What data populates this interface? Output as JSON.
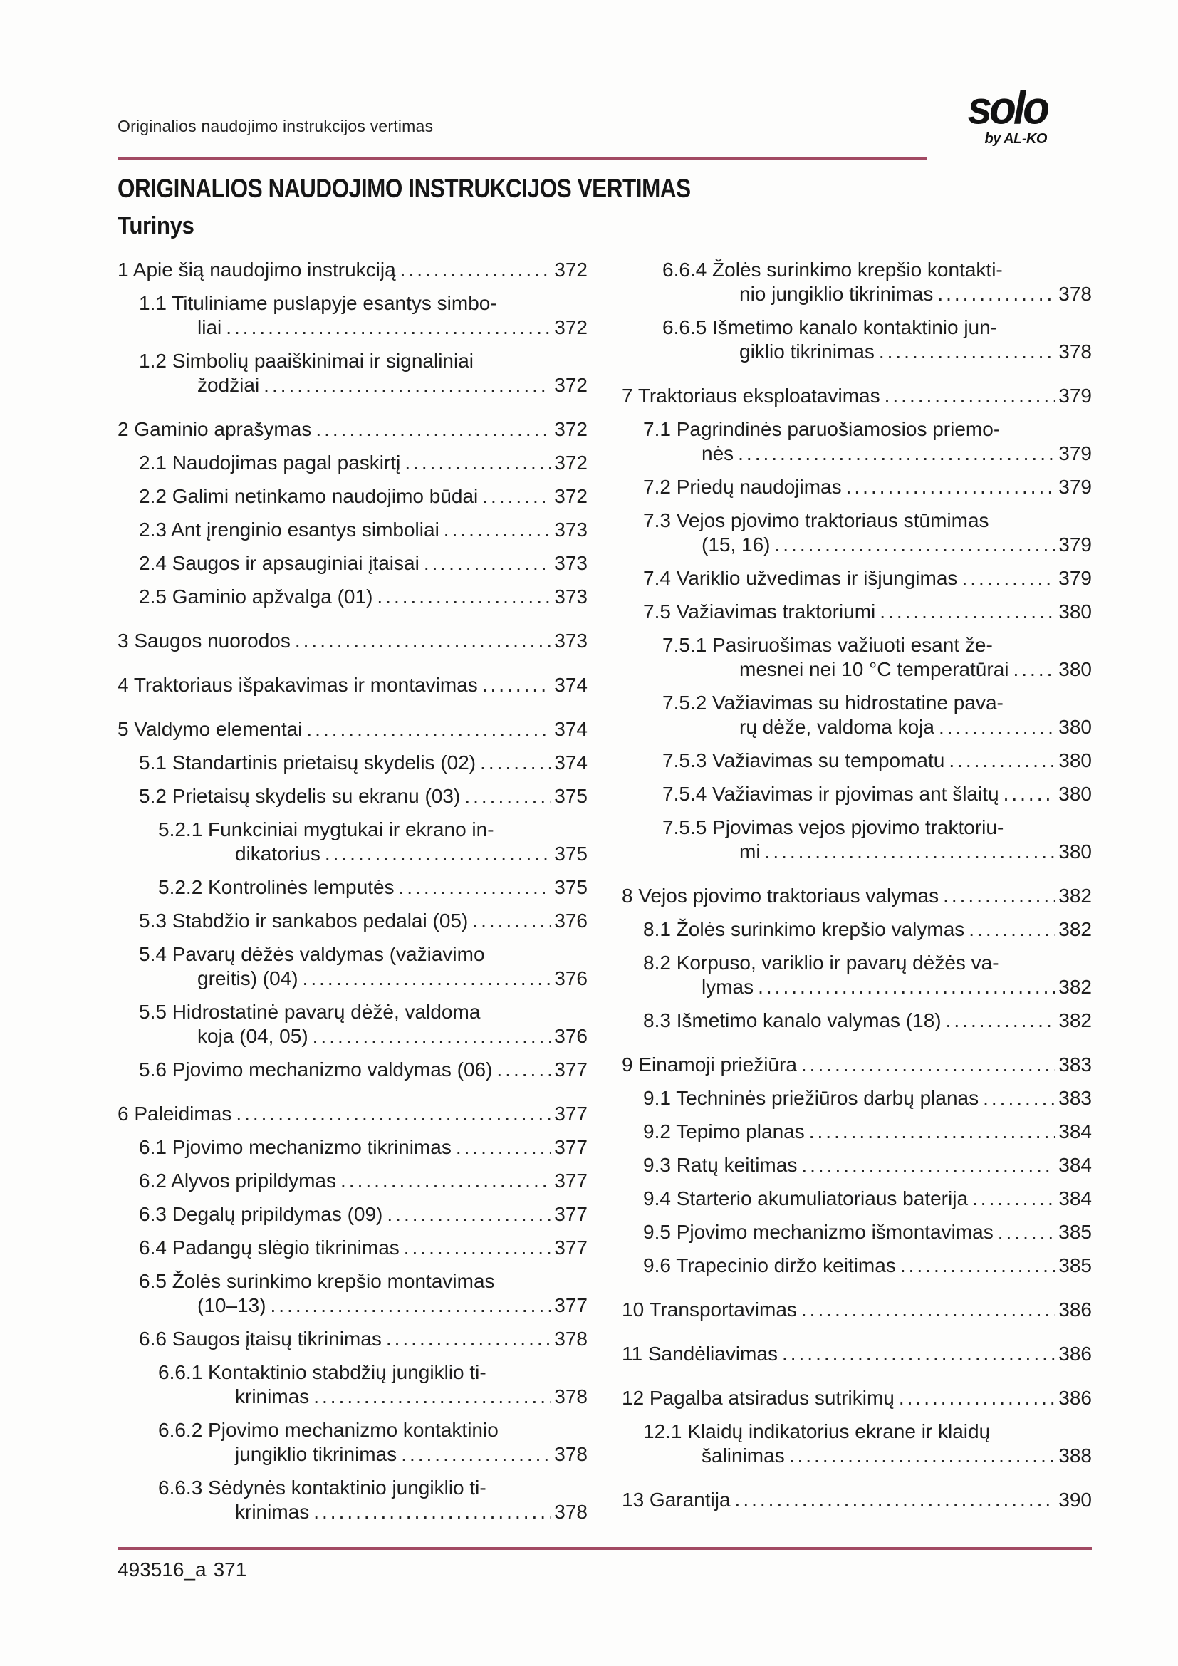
{
  "header": {
    "running_title": "Originalios naudojimo instrukcijos vertimas",
    "logo_text": "solo",
    "logo_subtext": "by AL-KO"
  },
  "title": "ORIGINALIOS NAUDOJIMO INSTRUKCIJOS VERTIMAS",
  "subtitle": "Turinys",
  "footer": {
    "doc_code": "493516_a",
    "page_number": "371"
  },
  "colors": {
    "rule": "#a24a63",
    "text": "#1d1d1d"
  },
  "toc": {
    "left_column": [
      {
        "level": 1,
        "label_lines": [
          "1 Apie šią naudojimo instrukciją"
        ],
        "page": "372"
      },
      {
        "level": 2,
        "label_lines": [
          "1.1 Tituliniame puslapyje esantys simbo-",
          "liai"
        ],
        "page": "372"
      },
      {
        "level": 2,
        "label_lines": [
          "1.2 Simbolių paaiškinimai ir signaliniai",
          "žodžiai"
        ],
        "page": "372"
      },
      {
        "level": 1,
        "label_lines": [
          "2 Gaminio aprašymas"
        ],
        "page": "372"
      },
      {
        "level": 2,
        "label_lines": [
          "2.1 Naudojimas pagal paskirtį"
        ],
        "page": "372"
      },
      {
        "level": 2,
        "label_lines": [
          "2.2 Galimi netinkamo naudojimo būdai"
        ],
        "page": "372"
      },
      {
        "level": 2,
        "label_lines": [
          "2.3 Ant įrenginio esantys simboliai"
        ],
        "page": "373"
      },
      {
        "level": 2,
        "label_lines": [
          "2.4 Saugos ir apsauginiai įtaisai"
        ],
        "page": "373"
      },
      {
        "level": 2,
        "label_lines": [
          "2.5 Gaminio apžvalga (01)"
        ],
        "page": "373"
      },
      {
        "level": 1,
        "label_lines": [
          "3 Saugos nuorodos"
        ],
        "page": "373"
      },
      {
        "level": 1,
        "label_lines": [
          "4 Traktoriaus išpakavimas ir montavimas"
        ],
        "page": "374"
      },
      {
        "level": 1,
        "label_lines": [
          "5 Valdymo elementai"
        ],
        "page": "374"
      },
      {
        "level": 2,
        "label_lines": [
          "5.1 Standartinis prietaisų skydelis (02)"
        ],
        "page": "374"
      },
      {
        "level": 2,
        "label_lines": [
          "5.2 Prietaisų skydelis su ekranu (03)"
        ],
        "page": "375"
      },
      {
        "level": 3,
        "label_lines": [
          "5.2.1 Funkciniai mygtukai ir ekrano in-",
          "dikatorius"
        ],
        "page": "375"
      },
      {
        "level": 3,
        "label_lines": [
          "5.2.2 Kontrolinės lemputės"
        ],
        "page": "375"
      },
      {
        "level": 2,
        "label_lines": [
          "5.3 Stabdžio ir sankabos pedalai (05)"
        ],
        "page": "376"
      },
      {
        "level": 2,
        "label_lines": [
          "5.4 Pavarų dėžės valdymas (važiavimo",
          "greitis) (04)"
        ],
        "page": "376"
      },
      {
        "level": 2,
        "label_lines": [
          "5.5 Hidrostatinė pavarų dėžė, valdoma",
          "koja (04, 05)"
        ],
        "page": "376"
      },
      {
        "level": 2,
        "label_lines": [
          "5.6 Pjovimo mechanizmo valdymas (06)"
        ],
        "page": "377"
      },
      {
        "level": 1,
        "label_lines": [
          "6 Paleidimas"
        ],
        "page": "377"
      },
      {
        "level": 2,
        "label_lines": [
          "6.1 Pjovimo mechanizmo tikrinimas"
        ],
        "page": "377"
      },
      {
        "level": 2,
        "label_lines": [
          "6.2 Alyvos pripildymas"
        ],
        "page": "377"
      },
      {
        "level": 2,
        "label_lines": [
          "6.3 Degalų pripildymas (09)"
        ],
        "page": "377"
      },
      {
        "level": 2,
        "label_lines": [
          "6.4 Padangų slėgio tikrinimas"
        ],
        "page": "377"
      },
      {
        "level": 2,
        "label_lines": [
          "6.5 Žolės surinkimo krepšio montavimas",
          "(10–13)"
        ],
        "page": "377"
      },
      {
        "level": 2,
        "label_lines": [
          "6.6 Saugos įtaisų tikrinimas"
        ],
        "page": "378"
      },
      {
        "level": 3,
        "label_lines": [
          "6.6.1 Kontaktinio stabdžių jungiklio ti-",
          "krinimas"
        ],
        "page": "378"
      },
      {
        "level": 3,
        "label_lines": [
          "6.6.2 Pjovimo mechanizmo kontaktinio",
          "jungiklio tikrinimas"
        ],
        "page": "378"
      },
      {
        "level": 3,
        "label_lines": [
          "6.6.3 Sėdynės kontaktinio jungiklio ti-",
          "krinimas"
        ],
        "page": "378"
      }
    ],
    "right_column": [
      {
        "level": 3,
        "label_lines": [
          "6.6.4 Žolės surinkimo krepšio kontakti-",
          "nio jungiklio tikrinimas"
        ],
        "page": "378"
      },
      {
        "level": 3,
        "label_lines": [
          "6.6.5 Išmetimo kanalo kontaktinio jun-",
          "giklio tikrinimas"
        ],
        "page": "378"
      },
      {
        "level": 1,
        "label_lines": [
          "7 Traktoriaus eksploatavimas"
        ],
        "page": "379"
      },
      {
        "level": 2,
        "label_lines": [
          "7.1 Pagrindinės paruošiamosios priemo-",
          "nės"
        ],
        "page": "379"
      },
      {
        "level": 2,
        "label_lines": [
          "7.2 Priedų naudojimas"
        ],
        "page": "379"
      },
      {
        "level": 2,
        "label_lines": [
          "7.3 Vejos pjovimo traktoriaus stūmimas",
          "(15, 16)"
        ],
        "page": "379"
      },
      {
        "level": 2,
        "label_lines": [
          "7.4 Variklio užvedimas ir išjungimas"
        ],
        "page": "379"
      },
      {
        "level": 2,
        "label_lines": [
          "7.5 Važiavimas traktoriumi"
        ],
        "page": "380"
      },
      {
        "level": 3,
        "label_lines": [
          "7.5.1 Pasiruošimas važiuoti esant že-",
          "mesnei nei 10 °C temperatūrai"
        ],
        "page": "380"
      },
      {
        "level": 3,
        "label_lines": [
          "7.5.2 Važiavimas su hidrostatine pava-",
          "rų dėže, valdoma koja"
        ],
        "page": "380"
      },
      {
        "level": 3,
        "label_lines": [
          "7.5.3 Važiavimas su tempomatu"
        ],
        "page": "380"
      },
      {
        "level": 3,
        "label_lines": [
          "7.5.4 Važiavimas ir pjovimas ant šlaitų"
        ],
        "page": "380"
      },
      {
        "level": 3,
        "label_lines": [
          "7.5.5 Pjovimas vejos pjovimo traktoriu-",
          "mi"
        ],
        "page": "380"
      },
      {
        "level": 1,
        "label_lines": [
          "8 Vejos pjovimo traktoriaus valymas"
        ],
        "page": "382"
      },
      {
        "level": 2,
        "label_lines": [
          "8.1 Žolės surinkimo krepšio valymas"
        ],
        "page": "382"
      },
      {
        "level": 2,
        "label_lines": [
          "8.2 Korpuso, variklio ir pavarų dėžės va-",
          "lymas"
        ],
        "page": "382"
      },
      {
        "level": 2,
        "label_lines": [
          "8.3 Išmetimo kanalo valymas (18)"
        ],
        "page": "382"
      },
      {
        "level": 1,
        "label_lines": [
          "9 Einamoji priežiūra"
        ],
        "page": "383"
      },
      {
        "level": 2,
        "label_lines": [
          "9.1 Techninės priežiūros darbų planas"
        ],
        "page": "383"
      },
      {
        "level": 2,
        "label_lines": [
          "9.2 Tepimo planas"
        ],
        "page": "384"
      },
      {
        "level": 2,
        "label_lines": [
          "9.3 Ratų keitimas"
        ],
        "page": "384"
      },
      {
        "level": 2,
        "label_lines": [
          "9.4 Starterio akumuliatoriaus baterija"
        ],
        "page": "384"
      },
      {
        "level": 2,
        "label_lines": [
          "9.5 Pjovimo mechanizmo išmontavimas"
        ],
        "page": "385"
      },
      {
        "level": 2,
        "label_lines": [
          "9.6 Trapecinio diržo keitimas"
        ],
        "page": "385"
      },
      {
        "level": 1,
        "label_lines": [
          "10 Transportavimas"
        ],
        "page": "386"
      },
      {
        "level": 1,
        "label_lines": [
          "11 Sandėliavimas"
        ],
        "page": "386"
      },
      {
        "level": 1,
        "label_lines": [
          "12 Pagalba atsiradus sutrikimų"
        ],
        "page": "386"
      },
      {
        "level": 2,
        "label_lines": [
          "12.1 Klaidų indikatorius ekrane ir klaidų",
          "šalinimas"
        ],
        "page": "388"
      },
      {
        "level": 1,
        "label_lines": [
          "13 Garantija"
        ],
        "page": "390"
      }
    ]
  }
}
